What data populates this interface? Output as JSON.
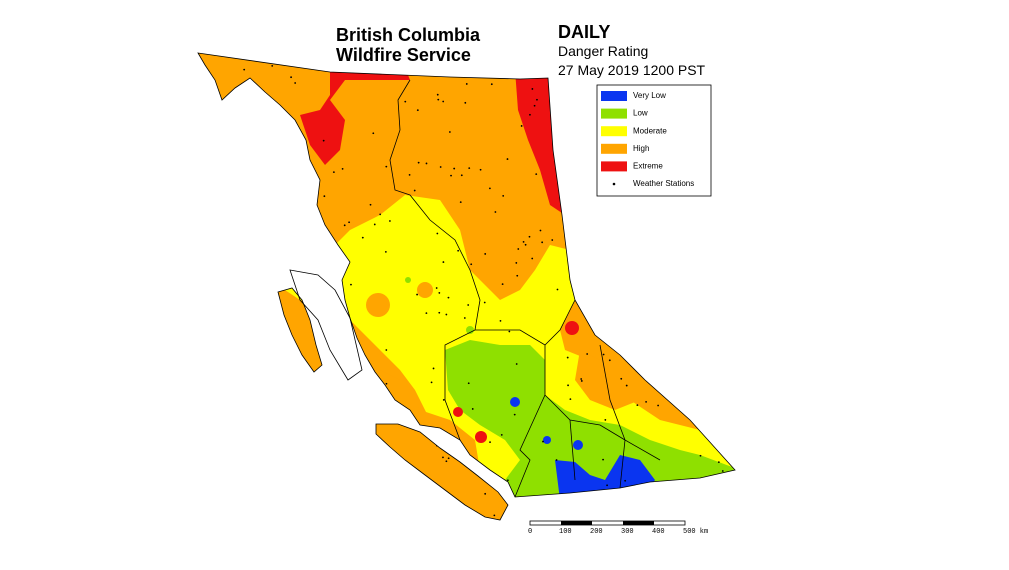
{
  "header": {
    "title_lines": [
      "British Columbia",
      "Wildfire Service"
    ],
    "product": "DAILY",
    "subtitle": "Danger Rating",
    "timestamp": "27 May 2019 1200 PST"
  },
  "legend": {
    "items": [
      {
        "label": "Very Low",
        "color": "#0a35f0"
      },
      {
        "label": "Low",
        "color": "#8fe000"
      },
      {
        "label": "Moderate",
        "color": "#ffff00"
      },
      {
        "label": "High",
        "color": "#ffa500"
      },
      {
        "label": "Extreme",
        "color": "#ee1111"
      }
    ],
    "stations_label": "Weather Stations"
  },
  "scale": {
    "labels": [
      "0",
      "100",
      "200",
      "300",
      "400",
      "500 km"
    ]
  }
}
